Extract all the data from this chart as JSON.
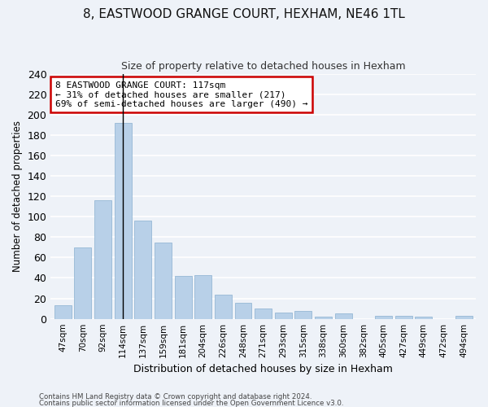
{
  "title": "8, EASTWOOD GRANGE COURT, HEXHAM, NE46 1TL",
  "subtitle": "Size of property relative to detached houses in Hexham",
  "xlabel": "Distribution of detached houses by size in Hexham",
  "ylabel": "Number of detached properties",
  "categories": [
    "47sqm",
    "70sqm",
    "92sqm",
    "114sqm",
    "137sqm",
    "159sqm",
    "181sqm",
    "204sqm",
    "226sqm",
    "248sqm",
    "271sqm",
    "293sqm",
    "315sqm",
    "338sqm",
    "360sqm",
    "382sqm",
    "405sqm",
    "427sqm",
    "449sqm",
    "472sqm",
    "494sqm"
  ],
  "values": [
    13,
    70,
    116,
    192,
    96,
    75,
    42,
    43,
    24,
    16,
    10,
    6,
    8,
    2,
    5,
    0,
    3,
    3,
    2,
    0,
    3
  ],
  "bar_color": "#b8d0e8",
  "bar_edge_color": "#8ab0d0",
  "subject_bar_index": 3,
  "subject_line_color": "#000000",
  "annotation_text": "8 EASTWOOD GRANGE COURT: 117sqm\n← 31% of detached houses are smaller (217)\n69% of semi-detached houses are larger (490) →",
  "annotation_box_color": "#ffffff",
  "annotation_box_edge_color": "#cc0000",
  "ylim": [
    0,
    240
  ],
  "yticks": [
    0,
    20,
    40,
    60,
    80,
    100,
    120,
    140,
    160,
    180,
    200,
    220,
    240
  ],
  "background_color": "#eef2f8",
  "grid_color": "#ffffff",
  "footer_line1": "Contains HM Land Registry data © Crown copyright and database right 2024.",
  "footer_line2": "Contains public sector information licensed under the Open Government Licence v3.0."
}
